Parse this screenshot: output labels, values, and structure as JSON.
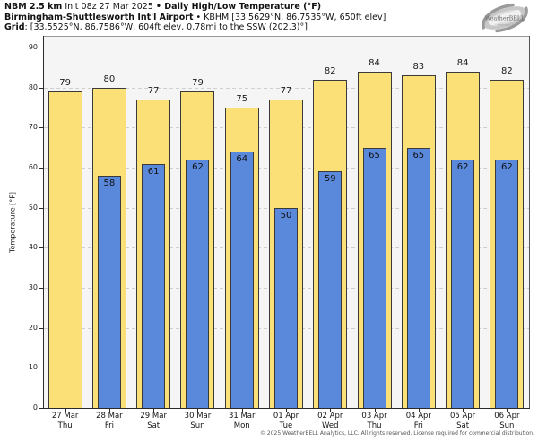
{
  "header": {
    "line1_bold1": "NBM 2.5 km",
    "line1_regular": " Init 08z 27 Mar 2025 ",
    "line1_bold2": "• Daily High/Low Temperature (°F)",
    "line2_bold": "Birmingham-Shuttlesworth Int'l Airport",
    "line2_regular": " • KBHM [33.5629°N, 86.7535°W, 650ft elev]",
    "line3_bold": "Grid",
    "line3_regular": ": [33.5525°N, 86.7586°W, 604ft elev, 0.78mi to the SSW (202.3)°]"
  },
  "logo": {
    "brand": "WeatherBELL",
    "sub": "Analytics LLC"
  },
  "chart_data": {
    "type": "bar",
    "title": "Daily High/Low Temperature (°F)",
    "ylabel": "Temperature [°F]",
    "ylim": [
      0,
      90
    ],
    "yticks": [
      0,
      10,
      20,
      30,
      40,
      50,
      60,
      70,
      80,
      90
    ],
    "grid": "horizontal-dashed",
    "legend_position": "none",
    "bar_colors": {
      "high": "#FBDF77",
      "low": "#5A88DB",
      "outline": "#3A3A3A"
    },
    "categories": [
      "27 Mar Thu",
      "28 Mar Fri",
      "29 Mar Sat",
      "30 Mar Sun",
      "31 Mar Mon",
      "01 Apr Tue",
      "02 Apr Wed",
      "03 Apr Thu",
      "04 Apr Fri",
      "05 Apr Sat",
      "06 Apr Sun"
    ],
    "series": [
      {
        "name": "High",
        "values": [
          79,
          80,
          77,
          79,
          75,
          77,
          82,
          84,
          83,
          84,
          82
        ]
      },
      {
        "name": "Low",
        "values": [
          null,
          58,
          61,
          62,
          64,
          50,
          59,
          65,
          65,
          62,
          62
        ]
      }
    ],
    "days": [
      {
        "date": "27 Mar",
        "day": "Thu",
        "high": 79,
        "low": null
      },
      {
        "date": "28 Mar",
        "day": "Fri",
        "high": 80,
        "low": 58
      },
      {
        "date": "29 Mar",
        "day": "Sat",
        "high": 77,
        "low": 61
      },
      {
        "date": "30 Mar",
        "day": "Sun",
        "high": 79,
        "low": 62
      },
      {
        "date": "31 Mar",
        "day": "Mon",
        "high": 75,
        "low": 64
      },
      {
        "date": "01 Apr",
        "day": "Tue",
        "high": 77,
        "low": 50
      },
      {
        "date": "02 Apr",
        "day": "Wed",
        "high": 82,
        "low": 59
      },
      {
        "date": "03 Apr",
        "day": "Thu",
        "high": 84,
        "low": 65
      },
      {
        "date": "04 Apr",
        "day": "Fri",
        "high": 83,
        "low": 65
      },
      {
        "date": "05 Apr",
        "day": "Sat",
        "high": 84,
        "low": 62
      },
      {
        "date": "06 Apr",
        "day": "Sun",
        "high": 82,
        "low": 62
      }
    ]
  },
  "footer": {
    "copyright": "© 2025 WeatherBELL Analytics, LLC. All rights reserved. License required for commercial distribution."
  }
}
